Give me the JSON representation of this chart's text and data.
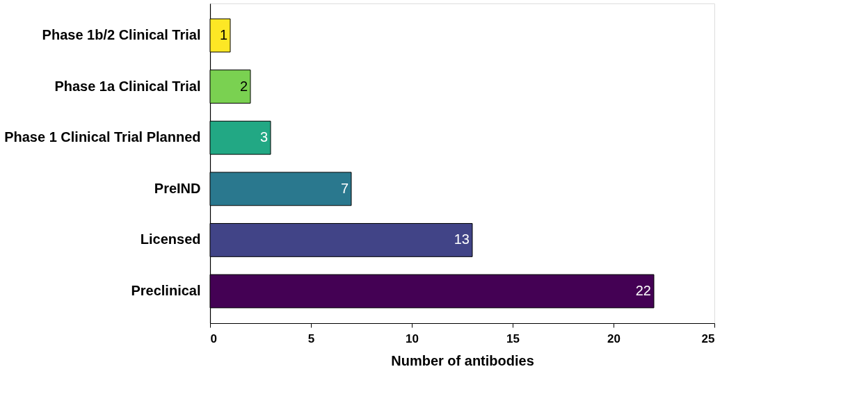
{
  "chart_data": {
    "type": "bar",
    "orientation": "horizontal",
    "xlabel": "Number of antibodies",
    "categories": [
      "Phase 1b/2 Clinical Trial",
      "Phase 1a Clinical Trial",
      "Phase 1 Clinical Trial Planned",
      "PreIND",
      "Licensed",
      "Preclinical"
    ],
    "values": [
      1,
      2,
      3,
      7,
      13,
      22
    ],
    "colors": [
      "#fde725",
      "#7ad151",
      "#22a884",
      "#2a788e",
      "#414487",
      "#440154"
    ],
    "xlim": [
      0,
      25
    ],
    "xticks": [
      0,
      5,
      10,
      15,
      20,
      25
    ],
    "grid": false,
    "data_labels": true
  }
}
